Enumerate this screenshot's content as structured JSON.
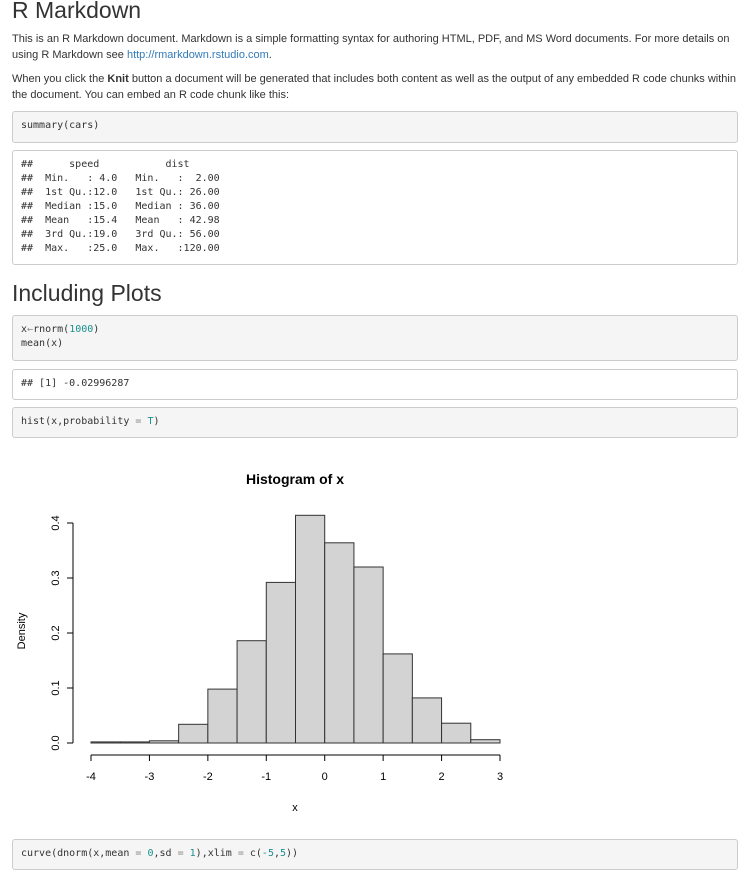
{
  "title": "R Markdown",
  "intro": {
    "text1": "This is an R Markdown document. Markdown is a simple formatting syntax for authoring HTML, PDF, and MS Word documents. For more details on using R Markdown see ",
    "link": "http://rmarkdown.rstudio.com",
    "text2": "."
  },
  "knit_para": {
    "before": "When you click the ",
    "bold": "Knit",
    "after": " button a document will be generated that includes both content as well as the output of any embedded R code chunks within the document. You can embed an R code chunk like this:"
  },
  "chunk_summary": "summary(cars)",
  "summary_output": [
    "##      speed           dist       ",
    "##  Min.   : 4.0   Min.   :  2.00  ",
    "##  1st Qu.:12.0   1st Qu.: 26.00  ",
    "##  Median :15.0   Median : 36.00  ",
    "##  Mean   :15.4   Mean   : 42.98  ",
    "##  3rd Qu.:19.0   3rd Qu.: 56.00  ",
    "##  Max.   :25.0   Max.   :120.00  "
  ],
  "heading_plots": "Including Plots",
  "chunk_rnorm": {
    "l1_a": "x",
    "l1_op": "←",
    "l1_b": "rnorm(",
    "l1_num": "1000",
    "l1_c": ")",
    "l2": "mean(x)"
  },
  "mean_output": "## [1] -0.02996287",
  "chunk_hist": {
    "a": "hist(x,probability ",
    "op": "=",
    "b": " ",
    "val": "T",
    "c": ")"
  },
  "chunk_curve": {
    "a": "curve(dnorm(x,mean ",
    "op1": "=",
    "b": " ",
    "n1": "0",
    "c": ",sd ",
    "op2": "=",
    "d": " ",
    "n2": "1",
    "e": "),xlim ",
    "op3": "=",
    "f": " c(",
    "n3": "-5",
    "g": ",",
    "n4": "5",
    "h": "))"
  },
  "chart_data": {
    "type": "bar",
    "title": "Histogram of x",
    "xlabel": "x",
    "ylabel": "Density",
    "bin_edges": [
      -4,
      -3.5,
      -3,
      -2.5,
      -2,
      -1.5,
      -1,
      -0.5,
      0,
      0.5,
      1,
      1.5,
      2,
      2.5,
      3
    ],
    "values": [
      0.002,
      0.002,
      0.004,
      0.034,
      0.098,
      0.186,
      0.292,
      0.414,
      0.364,
      0.32,
      0.162,
      0.082,
      0.036,
      0.006
    ],
    "xticks": [
      "-4",
      "-3",
      "-2",
      "-1",
      "0",
      "1",
      "2",
      "3"
    ],
    "yticks": [
      "0.0",
      "0.1",
      "0.2",
      "0.3",
      "0.4"
    ],
    "xlim": [
      -4,
      3
    ],
    "ylim": [
      0,
      0.4
    ],
    "bar_fill": "#d3d3d3",
    "bar_stroke": "#333333",
    "grid": false
  }
}
